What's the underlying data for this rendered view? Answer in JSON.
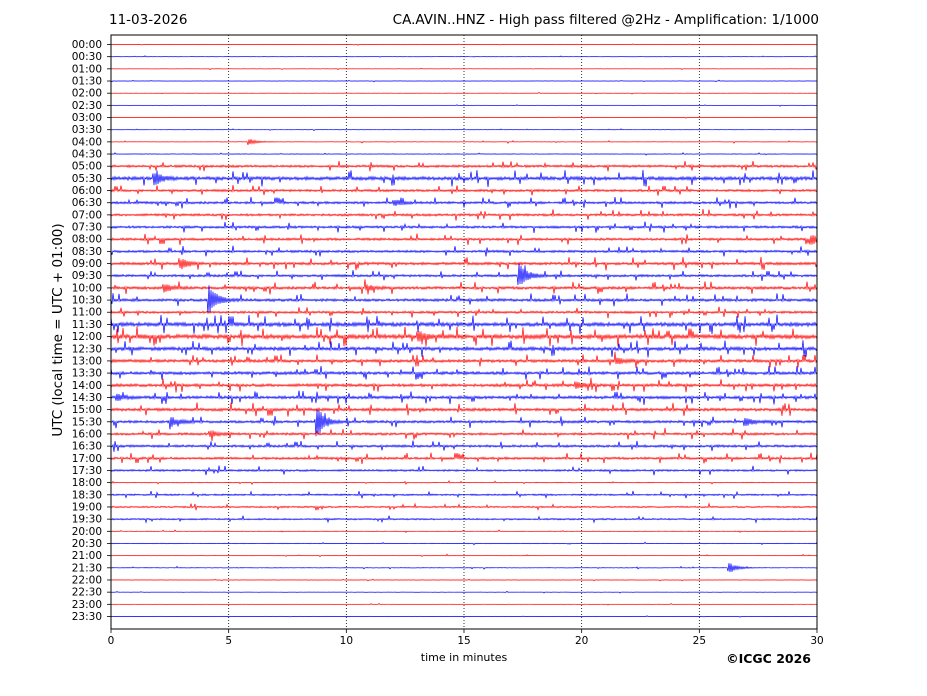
{
  "header": {
    "date": "11-03-2026",
    "title": "CA.AVIN..HNZ - High pass filtered @2Hz - Amplification: 1/1000"
  },
  "footer": {
    "copyright": "©ICGC 2026"
  },
  "chart_data": {
    "type": "line",
    "xlabel": "time in minutes",
    "ylabel": "UTC (local time = UTC + 01:00)",
    "xlim": [
      0,
      30
    ],
    "x_ticks": [
      0,
      5,
      10,
      15,
      20,
      25,
      30
    ],
    "vertical_grid": true,
    "trace_colors": [
      "#ff0000",
      "#0000ff"
    ],
    "rows": [
      "00:00",
      "00:30",
      "01:00",
      "01:30",
      "02:00",
      "02:30",
      "03:00",
      "03:30",
      "04:00",
      "04:30",
      "05:00",
      "05:30",
      "06:00",
      "06:30",
      "07:00",
      "07:30",
      "08:00",
      "08:30",
      "09:00",
      "09:30",
      "10:00",
      "10:30",
      "11:00",
      "11:30",
      "12:00",
      "12:30",
      "13:00",
      "13:30",
      "14:00",
      "14:30",
      "15:00",
      "15:30",
      "16:00",
      "16:30",
      "17:00",
      "17:30",
      "18:00",
      "18:30",
      "19:00",
      "19:30",
      "20:00",
      "20:30",
      "21:00",
      "21:30",
      "22:00",
      "22:30",
      "23:00",
      "23:30"
    ],
    "noise_level": [
      0.2,
      0.2,
      0.2,
      0.2,
      0.2,
      0.2,
      0.2,
      0.2,
      0.3,
      0.3,
      1.2,
      1.8,
      1.2,
      1.2,
      1.2,
      1.2,
      1.2,
      1.2,
      1.4,
      1.2,
      1.4,
      1.4,
      1.2,
      2.0,
      2.2,
      1.8,
      1.5,
      1.5,
      1.5,
      1.5,
      1.5,
      1.3,
      1.2,
      1.2,
      1.2,
      1.0,
      0.4,
      0.8,
      0.8,
      0.8,
      0.3,
      0.3,
      0.3,
      0.3,
      0.2,
      0.2,
      0.2,
      0.2
    ],
    "events": [
      {
        "row": "04:00",
        "minute": 5.9,
        "amplitude": 3
      },
      {
        "row": "05:30",
        "minute": 1.9,
        "amplitude": 6
      },
      {
        "row": "06:30",
        "minute": 12.1,
        "amplitude": 3
      },
      {
        "row": "08:00",
        "minute": 29.8,
        "amplitude": 5
      },
      {
        "row": "09:00",
        "minute": 3.0,
        "amplitude": 5
      },
      {
        "row": "09:30",
        "minute": 17.4,
        "amplitude": 12
      },
      {
        "row": "10:00",
        "minute": 2.3,
        "amplitude": 4
      },
      {
        "row": "10:00",
        "minute": 10.9,
        "amplitude": 3
      },
      {
        "row": "10:30",
        "minute": 4.2,
        "amplitude": 14
      },
      {
        "row": "12:00",
        "minute": 13.1,
        "amplitude": 5
      },
      {
        "row": "13:00",
        "minute": 21.5,
        "amplitude": 3
      },
      {
        "row": "14:00",
        "minute": 19.8,
        "amplitude": 3
      },
      {
        "row": "14:30",
        "minute": 0.3,
        "amplitude": 3
      },
      {
        "row": "15:30",
        "minute": 8.8,
        "amplitude": 14
      },
      {
        "row": "15:30",
        "minute": 2.6,
        "amplitude": 4
      },
      {
        "row": "15:30",
        "minute": 27.0,
        "amplitude": 4
      },
      {
        "row": "16:00",
        "minute": 4.3,
        "amplitude": 3
      },
      {
        "row": "21:30",
        "minute": 26.3,
        "amplitude": 5
      }
    ]
  }
}
